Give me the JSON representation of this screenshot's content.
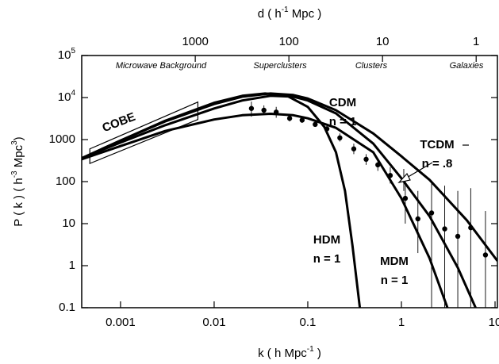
{
  "chart_data": {
    "type": "line",
    "xlabel": {
      "parts": [
        "k ( h  Mpc",
        "-1",
        " )"
      ]
    },
    "ylabel": {
      "parts": [
        "P ( k )  ( h",
        "-3",
        " Mpc",
        "3",
        ")"
      ]
    },
    "x2label": {
      "parts": [
        "d ( h",
        "-1",
        " Mpc )"
      ]
    },
    "log_x": true,
    "log_y": true,
    "xlim": [
      0.000385,
      10.6
    ],
    "ylim": [
      0.1,
      100000
    ],
    "x2lim": [
      16320,
      0.593
    ],
    "xticks": [
      0.001,
      0.01,
      0.1,
      1,
      10
    ],
    "x2ticks": [
      1000,
      100,
      10,
      1
    ],
    "yticks": [
      {
        "value": 100000,
        "label": "10",
        "exponent": "5"
      },
      {
        "value": 10000,
        "label": "10",
        "exponent": "4"
      },
      1000,
      100,
      10,
      1,
      0.1
    ],
    "regions": [
      "Microwave Background",
      "Superclusters",
      "Clusters",
      "Galaxies"
    ],
    "series": [
      {
        "name": "CDM",
        "param": "n = 1",
        "color": "#000000",
        "x": [
          0.000385,
          0.001,
          0.003,
          0.01,
          0.02,
          0.04,
          0.07,
          0.1,
          0.2,
          0.5,
          1,
          2,
          5,
          10.6
        ],
        "values": [
          360,
          950,
          2700,
          7000,
          10500,
          12500,
          11500,
          9500,
          5000,
          1400,
          400,
          110,
          12,
          1.3
        ]
      },
      {
        "name": "TCDM",
        "param": "n = .8",
        "color": "#000000",
        "x": [
          0.000385,
          0.001,
          0.003,
          0.01,
          0.02,
          0.04,
          0.07,
          0.1,
          0.2,
          0.5,
          1,
          2,
          4,
          6.2
        ],
        "values": [
          360,
          850,
          2200,
          5500,
          8500,
          11000,
          10500,
          8500,
          4200,
          800,
          120,
          15,
          0.9,
          0.1
        ]
      },
      {
        "name": "MDM",
        "param": "n = 1",
        "color": "#000000",
        "x": [
          0.000385,
          0.001,
          0.003,
          0.01,
          0.02,
          0.04,
          0.07,
          0.1,
          0.2,
          0.5,
          1,
          2,
          3.1
        ],
        "values": [
          340,
          700,
          1600,
          3000,
          3800,
          4100,
          3800,
          3200,
          1900,
          500,
          40,
          1.5,
          0.1
        ]
      },
      {
        "name": "HDM",
        "param": "n = 1",
        "color": "#000000",
        "x": [
          0.000385,
          0.001,
          0.003,
          0.01,
          0.02,
          0.035,
          0.06,
          0.1,
          0.15,
          0.2,
          0.25,
          0.3,
          0.36
        ],
        "values": [
          360,
          950,
          2800,
          7500,
          11000,
          12500,
          11000,
          6000,
          2000,
          500,
          60,
          3,
          0.1
        ]
      }
    ],
    "points": {
      "color": "#000000",
      "x": [
        0.025,
        0.034,
        0.046,
        0.064,
        0.087,
        0.12,
        0.16,
        0.22,
        0.31,
        0.42,
        0.56,
        0.76,
        1.06,
        1.1,
        1.5,
        2.1,
        2.9,
        4.0,
        5.5,
        7.9
      ],
      "values": [
        5500,
        5000,
        4500,
        3200,
        2900,
        2300,
        1800,
        1100,
        600,
        340,
        250,
        140,
        110,
        40,
        13,
        18,
        7.5,
        5,
        8,
        1.8
      ],
      "lower": [
        3500,
        4000,
        3300,
        2700,
        2500,
        2000,
        1500,
        900,
        450,
        250,
        180,
        90,
        60,
        10,
        2,
        0.1,
        0.1,
        0.1,
        0.1,
        0.1
      ],
      "upper": [
        8000,
        6500,
        6000,
        3800,
        3400,
        2700,
        2100,
        1400,
        800,
        450,
        350,
        220,
        200,
        140,
        60,
        100,
        80,
        60,
        70,
        20
      ]
    },
    "cobe": {
      "label": "COBE",
      "x": [
        0.00047,
        0.0067
      ],
      "lower": [
        270,
        3000
      ],
      "upper": [
        600,
        7800
      ]
    }
  }
}
